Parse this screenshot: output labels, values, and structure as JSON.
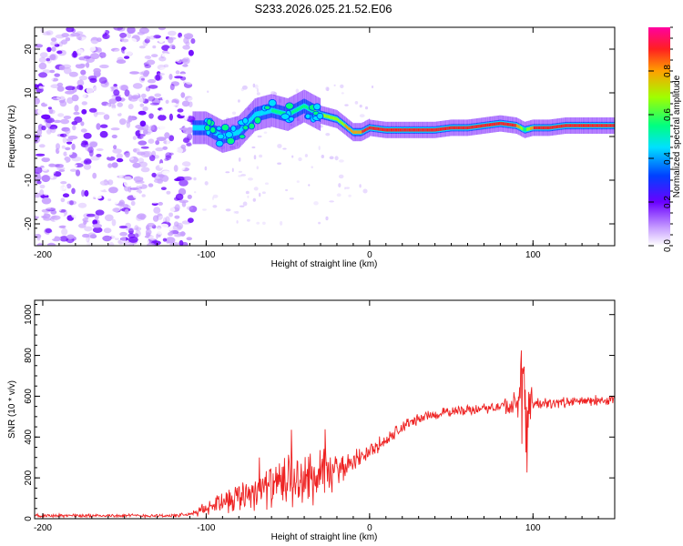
{
  "figure_title": "S233.2026.025.21.52.E06",
  "colors": {
    "snr_line": "#ee2222",
    "axis": "#000000"
  },
  "chart_data": [
    {
      "type": "heatmap",
      "title": "S233.2026.025.21.52.E06",
      "xlabel": "Height of straight line (km)",
      "ylabel": "Frequency (Hz)",
      "xlim": [
        -205,
        150
      ],
      "ylim": [
        -25,
        25
      ],
      "x_ticks": [
        -200,
        -100,
        0,
        100
      ],
      "x_tick_labels": [
        "-200",
        "-100",
        "0",
        "100"
      ],
      "y_ticks": [
        -20,
        -10,
        0,
        10,
        20
      ],
      "y_tick_labels": [
        "-20",
        "-10",
        "0",
        "10",
        "20"
      ],
      "colorbar": {
        "label": "Normalized spectral amplitude",
        "range": [
          0,
          1
        ],
        "ticks": [
          0.0,
          0.2,
          0.4,
          0.6,
          0.8
        ],
        "tick_labels": [
          "0.0",
          "0.2",
          "0.4",
          "0.6",
          "0.8"
        ]
      },
      "noise_region": {
        "x_range": [
          -205,
          -108
        ],
        "freq_range": [
          -25,
          25
        ],
        "amplitude": "low (0.0-0.2)"
      },
      "ridge": {
        "x": [
          -108,
          -100,
          -90,
          -80,
          -70,
          -60,
          -50,
          -40,
          -30,
          -20,
          -10,
          -5,
          0,
          10,
          20,
          30,
          40,
          50,
          60,
          70,
          80,
          90,
          95,
          100,
          110,
          120,
          130,
          140,
          150
        ],
        "frequency": [
          2,
          2,
          0,
          1,
          5,
          6,
          5,
          7,
          5,
          4,
          1,
          1,
          2,
          1.5,
          1.5,
          1.5,
          1.5,
          2,
          2,
          2.5,
          3,
          2.5,
          1.5,
          2,
          2,
          2.5,
          2.5,
          2.5,
          2.5
        ],
        "amplitude": [
          0.15,
          0.3,
          0.4,
          0.45,
          0.5,
          0.55,
          0.6,
          0.65,
          0.7,
          0.75,
          0.85,
          0.9,
          0.9,
          0.9,
          0.92,
          0.92,
          0.93,
          0.93,
          0.93,
          0.95,
          0.95,
          0.9,
          0.6,
          0.9,
          0.92,
          0.95,
          0.95,
          0.95,
          0.95
        ]
      }
    },
    {
      "type": "line",
      "title": "",
      "xlabel": "Height of straight line (km)",
      "ylabel": "SNR (10 * v/v)",
      "xlim": [
        -205,
        150
      ],
      "ylim": [
        0,
        1070
      ],
      "x_ticks": [
        -200,
        -100,
        0,
        100
      ],
      "x_tick_labels": [
        "-200",
        "-100",
        "0",
        "100"
      ],
      "y_ticks": [
        0,
        200,
        400,
        600,
        800,
        1000
      ],
      "y_tick_labels": [
        "0",
        "200",
        "400",
        "600",
        "800",
        "1000"
      ],
      "series": [
        {
          "name": "SNR",
          "x": [
            -205,
            -180,
            -160,
            -140,
            -120,
            -110,
            -100,
            -90,
            -80,
            -70,
            -60,
            -50,
            -40,
            -30,
            -20,
            -10,
            0,
            10,
            20,
            30,
            40,
            50,
            60,
            70,
            80,
            90,
            95,
            100,
            110,
            120,
            130,
            140,
            150
          ],
          "values": [
            15,
            15,
            15,
            15,
            15,
            20,
            50,
            90,
            110,
            140,
            160,
            170,
            190,
            200,
            240,
            280,
            330,
            380,
            450,
            490,
            510,
            525,
            535,
            540,
            550,
            555,
            560,
            560,
            565,
            570,
            575,
            580,
            580
          ],
          "spread": [
            10,
            10,
            10,
            10,
            10,
            12,
            40,
            70,
            90,
            110,
            120,
            140,
            160,
            180,
            80,
            60,
            50,
            45,
            40,
            35,
            30,
            30,
            30,
            30,
            30,
            100,
            450,
            40,
            30,
            30,
            30,
            30,
            30
          ]
        }
      ]
    }
  ]
}
